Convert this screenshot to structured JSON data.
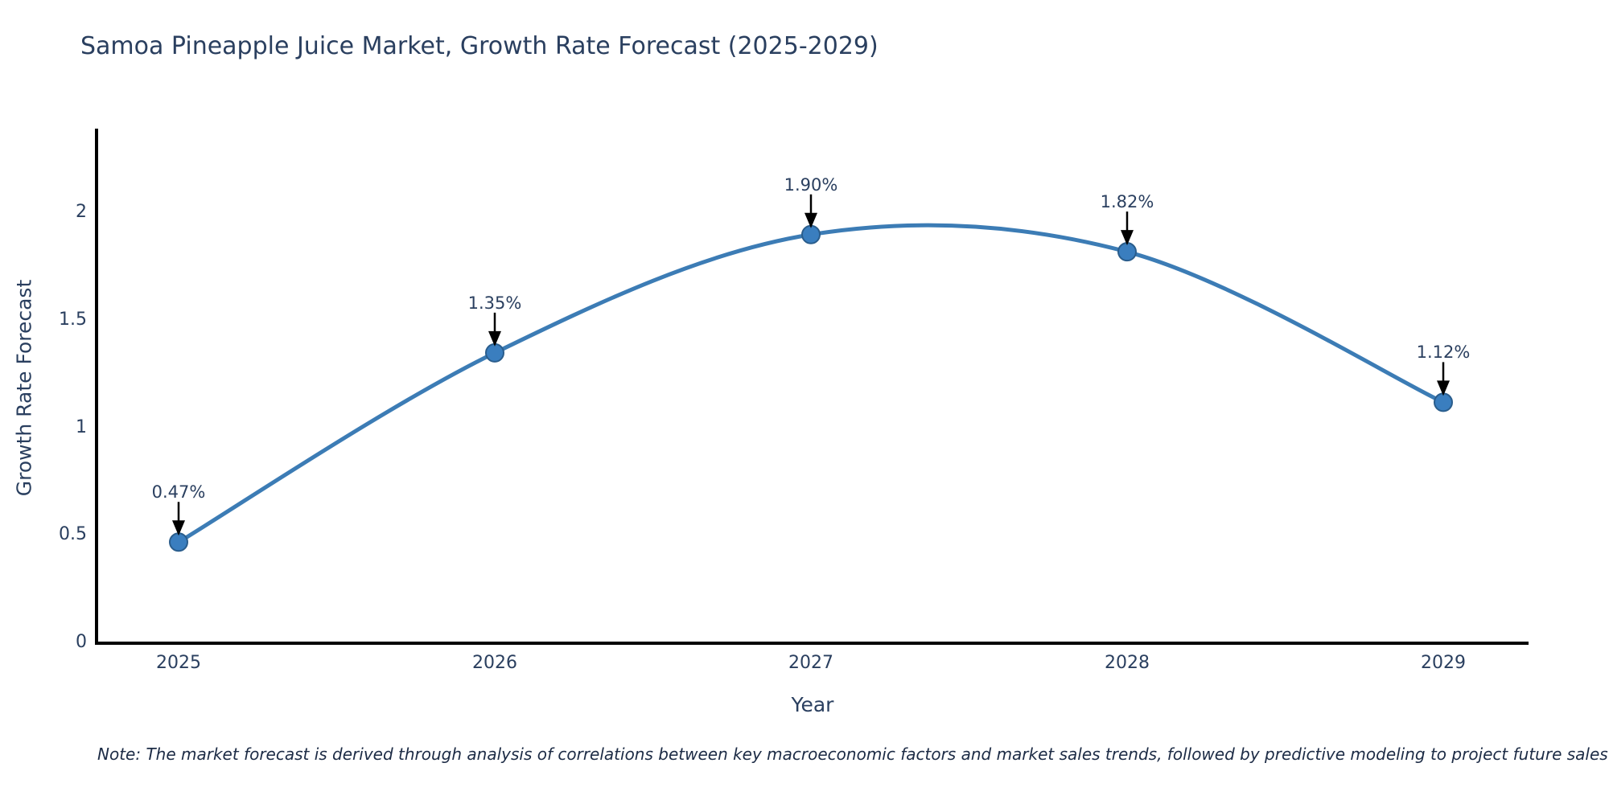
{
  "title": "Samoa Pineapple Juice Market, Growth Rate Forecast (2025-2029)",
  "note": "Note: The market forecast is derived through analysis of correlations between key macroeconomic factors and market sales trends, followed by predictive modeling to project future sales",
  "colors": {
    "background": "#ffffff",
    "line": "#3c7cb5",
    "marker_fill": "#3a7ebf",
    "marker_edge": "#2a5d8c",
    "axis": "#000000",
    "arrow": "#000000",
    "text": "#2a3f5f"
  },
  "chart_data": {
    "type": "line",
    "title": "Samoa Pineapple Juice Market, Growth Rate Forecast (2025-2029)",
    "x": [
      2025,
      2026,
      2027,
      2028,
      2029
    ],
    "values": [
      0.47,
      1.35,
      1.9,
      1.82,
      1.12
    ],
    "point_labels": [
      "0.47%",
      "1.35%",
      "1.90%",
      "1.82%",
      "1.12%"
    ],
    "xlabel": "Year",
    "ylabel": "Growth Rate Forecast",
    "x_tick_labels": [
      "2025",
      "2026",
      "2027",
      "2028",
      "2029"
    ],
    "y_tick_labels": [
      "0",
      "0.5",
      "1",
      "1.5",
      "2"
    ],
    "y_tick_values": [
      0,
      0.5,
      1,
      1.5,
      2
    ],
    "ylim": [
      0,
      2.4
    ],
    "line_shape": "spline",
    "markers": true,
    "grid": false,
    "legend_position": "none"
  }
}
